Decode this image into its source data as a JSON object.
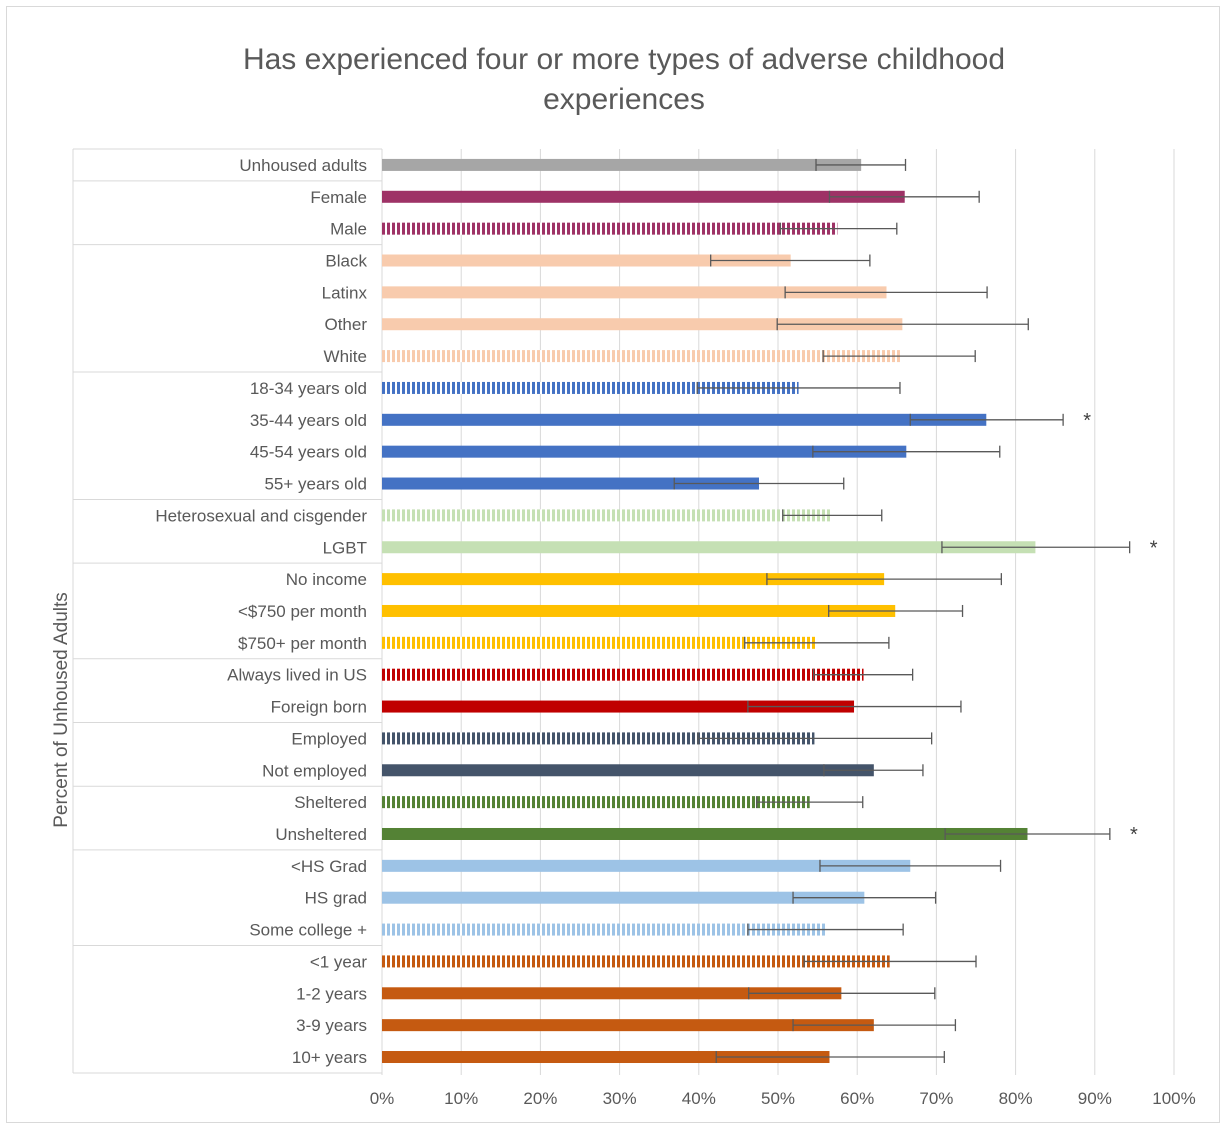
{
  "chart_data": {
    "type": "bar",
    "orientation": "horizontal",
    "title_lines": [
      "Has experienced four or more types of adverse childhood",
      "experiences"
    ],
    "ylabel": "Percent of Unhoused Adults",
    "xlabel": "",
    "xlim": [
      0,
      100
    ],
    "x_ticks": [
      "0%",
      "10%",
      "20%",
      "30%",
      "40%",
      "50%",
      "60%",
      "70%",
      "80%",
      "90%",
      "100%"
    ],
    "grid": true,
    "legend": "none",
    "significance_marker": "*",
    "groups": [
      {
        "categories": [
          {
            "label": "Unhoused adults",
            "value": 60.5,
            "err_low": 54.8,
            "err_high": 66.1,
            "color": "#a6a6a6",
            "pattern": "solid",
            "star": false
          }
        ]
      },
      {
        "categories": [
          {
            "label": "Female",
            "value": 66.0,
            "err_low": 56.5,
            "err_high": 75.4,
            "color": "#9e3266",
            "pattern": "solid",
            "star": false
          },
          {
            "label": "Male",
            "value": 57.5,
            "err_low": 50.3,
            "err_high": 65.0,
            "color": "#9e3266",
            "pattern": "striped",
            "star": false
          }
        ]
      },
      {
        "categories": [
          {
            "label": "Black",
            "value": 51.6,
            "err_low": 41.5,
            "err_high": 61.6,
            "color": "#f8cbad",
            "pattern": "solid",
            "star": false
          },
          {
            "label": "Latinx",
            "value": 63.7,
            "err_low": 50.9,
            "err_high": 76.4,
            "color": "#f8cbad",
            "pattern": "solid",
            "star": false
          },
          {
            "label": "Other",
            "value": 65.7,
            "err_low": 49.9,
            "err_high": 81.6,
            "color": "#f8cbad",
            "pattern": "solid",
            "star": false
          },
          {
            "label": "White",
            "value": 65.4,
            "err_low": 55.7,
            "err_high": 74.9,
            "color": "#f8cbad",
            "pattern": "striped",
            "star": false
          }
        ]
      },
      {
        "categories": [
          {
            "label": "18-34 years old",
            "value": 52.6,
            "err_low": 39.8,
            "err_high": 65.4,
            "color": "#4472c4",
            "pattern": "striped",
            "star": false
          },
          {
            "label": "35-44 years old",
            "value": 76.3,
            "err_low": 66.7,
            "err_high": 86.0,
            "color": "#4472c4",
            "pattern": "solid",
            "star": true
          },
          {
            "label": "45-54 years old",
            "value": 66.2,
            "err_low": 54.4,
            "err_high": 78.0,
            "color": "#4472c4",
            "pattern": "solid",
            "star": false
          },
          {
            "label": "55+ years old",
            "value": 47.6,
            "err_low": 36.9,
            "err_high": 58.3,
            "color": "#4472c4",
            "pattern": "solid",
            "star": false
          }
        ]
      },
      {
        "categories": [
          {
            "label": "Heterosexual and cisgender",
            "value": 56.8,
            "err_low": 50.6,
            "err_high": 63.1,
            "color": "#c5e0b4",
            "pattern": "striped",
            "star": false
          },
          {
            "label": "LGBT",
            "value": 82.5,
            "err_low": 70.7,
            "err_high": 94.4,
            "color": "#c5e0b4",
            "pattern": "solid",
            "star": true
          }
        ]
      },
      {
        "categories": [
          {
            "label": "No income",
            "value": 63.4,
            "err_low": 48.6,
            "err_high": 78.2,
            "color": "#ffc000",
            "pattern": "solid",
            "star": false
          },
          {
            "label": "<$750 per month",
            "value": 64.8,
            "err_low": 56.4,
            "err_high": 73.3,
            "color": "#ffc000",
            "pattern": "solid",
            "star": false
          },
          {
            "label": "$750+ per month",
            "value": 54.9,
            "err_low": 45.8,
            "err_high": 64.0,
            "color": "#ffc000",
            "pattern": "striped",
            "star": false
          }
        ]
      },
      {
        "categories": [
          {
            "label": "Always lived in US",
            "value": 60.8,
            "err_low": 54.5,
            "err_high": 67.0,
            "color": "#c00000",
            "pattern": "striped",
            "star": false
          },
          {
            "label": "Foreign born",
            "value": 59.6,
            "err_low": 46.2,
            "err_high": 73.1,
            "color": "#c00000",
            "pattern": "solid",
            "star": false
          }
        ]
      },
      {
        "categories": [
          {
            "label": "Employed",
            "value": 54.6,
            "err_low": 39.9,
            "err_high": 69.4,
            "color": "#44546a",
            "pattern": "striped",
            "star": false
          },
          {
            "label": "Not employed",
            "value": 62.1,
            "err_low": 55.8,
            "err_high": 68.3,
            "color": "#44546a",
            "pattern": "solid",
            "star": false
          }
        ]
      },
      {
        "categories": [
          {
            "label": "Sheltered",
            "value": 54.0,
            "err_low": 47.3,
            "err_high": 60.7,
            "color": "#548235",
            "pattern": "striped",
            "star": false
          },
          {
            "label": "Unsheltered",
            "value": 81.5,
            "err_low": 71.1,
            "err_high": 91.9,
            "color": "#548235",
            "pattern": "solid",
            "star": true
          }
        ]
      },
      {
        "categories": [
          {
            "label": "<HS Grad",
            "value": 66.7,
            "err_low": 55.3,
            "err_high": 78.1,
            "color": "#9dc3e6",
            "pattern": "solid",
            "star": false
          },
          {
            "label": "HS grad",
            "value": 60.9,
            "err_low": 51.9,
            "err_high": 69.9,
            "color": "#9dc3e6",
            "pattern": "solid",
            "star": false
          },
          {
            "label": "Some college +",
            "value": 56.0,
            "err_low": 46.2,
            "err_high": 65.8,
            "color": "#9dc3e6",
            "pattern": "striped",
            "star": false
          }
        ]
      },
      {
        "categories": [
          {
            "label": "<1 year",
            "value": 64.1,
            "err_low": 53.3,
            "err_high": 75.0,
            "color": "#c55a11",
            "pattern": "striped",
            "star": false
          },
          {
            "label": "1-2 years",
            "value": 58.0,
            "err_low": 46.3,
            "err_high": 69.8,
            "color": "#c55a11",
            "pattern": "solid",
            "star": false
          },
          {
            "label": "3-9 years",
            "value": 62.1,
            "err_low": 51.9,
            "err_high": 72.4,
            "color": "#c55a11",
            "pattern": "solid",
            "star": false
          },
          {
            "label": "10+ years",
            "value": 56.5,
            "err_low": 42.2,
            "err_high": 71.0,
            "color": "#c55a11",
            "pattern": "solid",
            "star": false
          }
        ]
      }
    ]
  }
}
